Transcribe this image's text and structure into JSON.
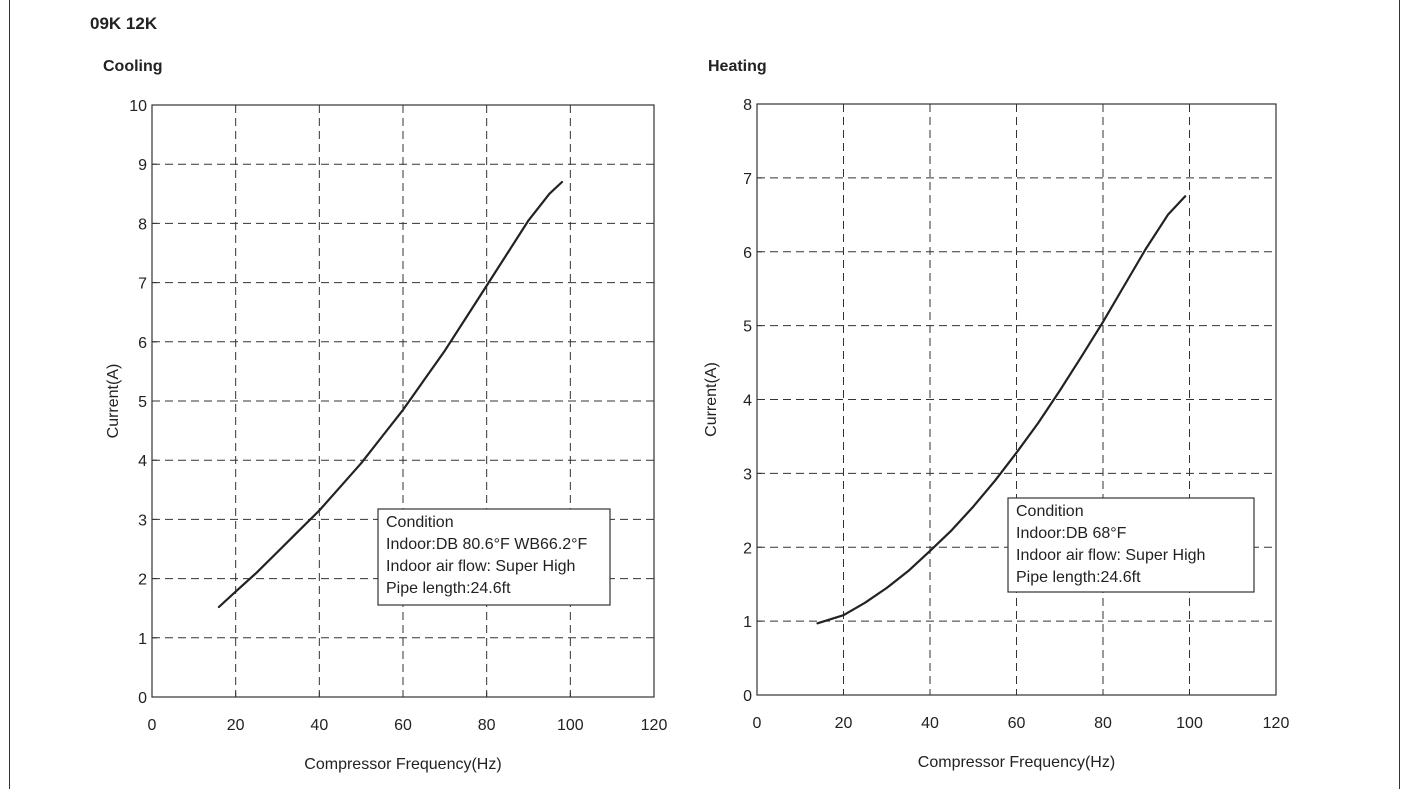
{
  "model_label": "09K  12K",
  "chart_data": [
    {
      "type": "line",
      "title": "Cooling",
      "xlabel": "Compressor Frequency(Hz)",
      "ylabel": "Current(A)",
      "xlim": [
        0,
        120
      ],
      "ylim": [
        0,
        10
      ],
      "xticks": [
        0,
        20,
        40,
        60,
        80,
        100,
        120
      ],
      "yticks": [
        0,
        1,
        2,
        3,
        4,
        5,
        6,
        7,
        8,
        9,
        10
      ],
      "grid": true,
      "series": [
        {
          "x": [
            16,
            20,
            25,
            30,
            35,
            40,
            45,
            50,
            55,
            60,
            65,
            70,
            75,
            80,
            85,
            90,
            95,
            98
          ],
          "y": [
            1.52,
            1.78,
            2.1,
            2.45,
            2.8,
            3.15,
            3.55,
            3.95,
            4.4,
            4.85,
            5.35,
            5.85,
            6.4,
            6.95,
            7.5,
            8.05,
            8.5,
            8.7
          ]
        }
      ],
      "annotation": [
        "Condition",
        "Indoor:DB 80.6°F WB66.2°F",
        "Indoor air flow: Super High",
        "Pipe length:24.6ft"
      ]
    },
    {
      "type": "line",
      "title": "Heating",
      "xlabel": "Compressor Frequency(Hz)",
      "ylabel": "Current(A)",
      "xlim": [
        0,
        120
      ],
      "ylim": [
        0,
        8
      ],
      "xticks": [
        0,
        20,
        40,
        60,
        80,
        100,
        120
      ],
      "yticks": [
        0,
        1,
        2,
        3,
        4,
        5,
        6,
        7,
        8
      ],
      "grid": true,
      "series": [
        {
          "x": [
            14,
            20,
            25,
            30,
            35,
            40,
            45,
            50,
            55,
            60,
            65,
            70,
            75,
            80,
            85,
            90,
            95,
            99
          ],
          "y": [
            0.97,
            1.08,
            1.25,
            1.45,
            1.68,
            1.95,
            2.23,
            2.55,
            2.9,
            3.28,
            3.68,
            4.12,
            4.58,
            5.05,
            5.55,
            6.05,
            6.5,
            6.75
          ]
        }
      ],
      "annotation": [
        "Condition",
        "Indoor:DB 68°F",
        "Indoor air flow: Super High",
        "Pipe length:24.6ft"
      ]
    }
  ]
}
